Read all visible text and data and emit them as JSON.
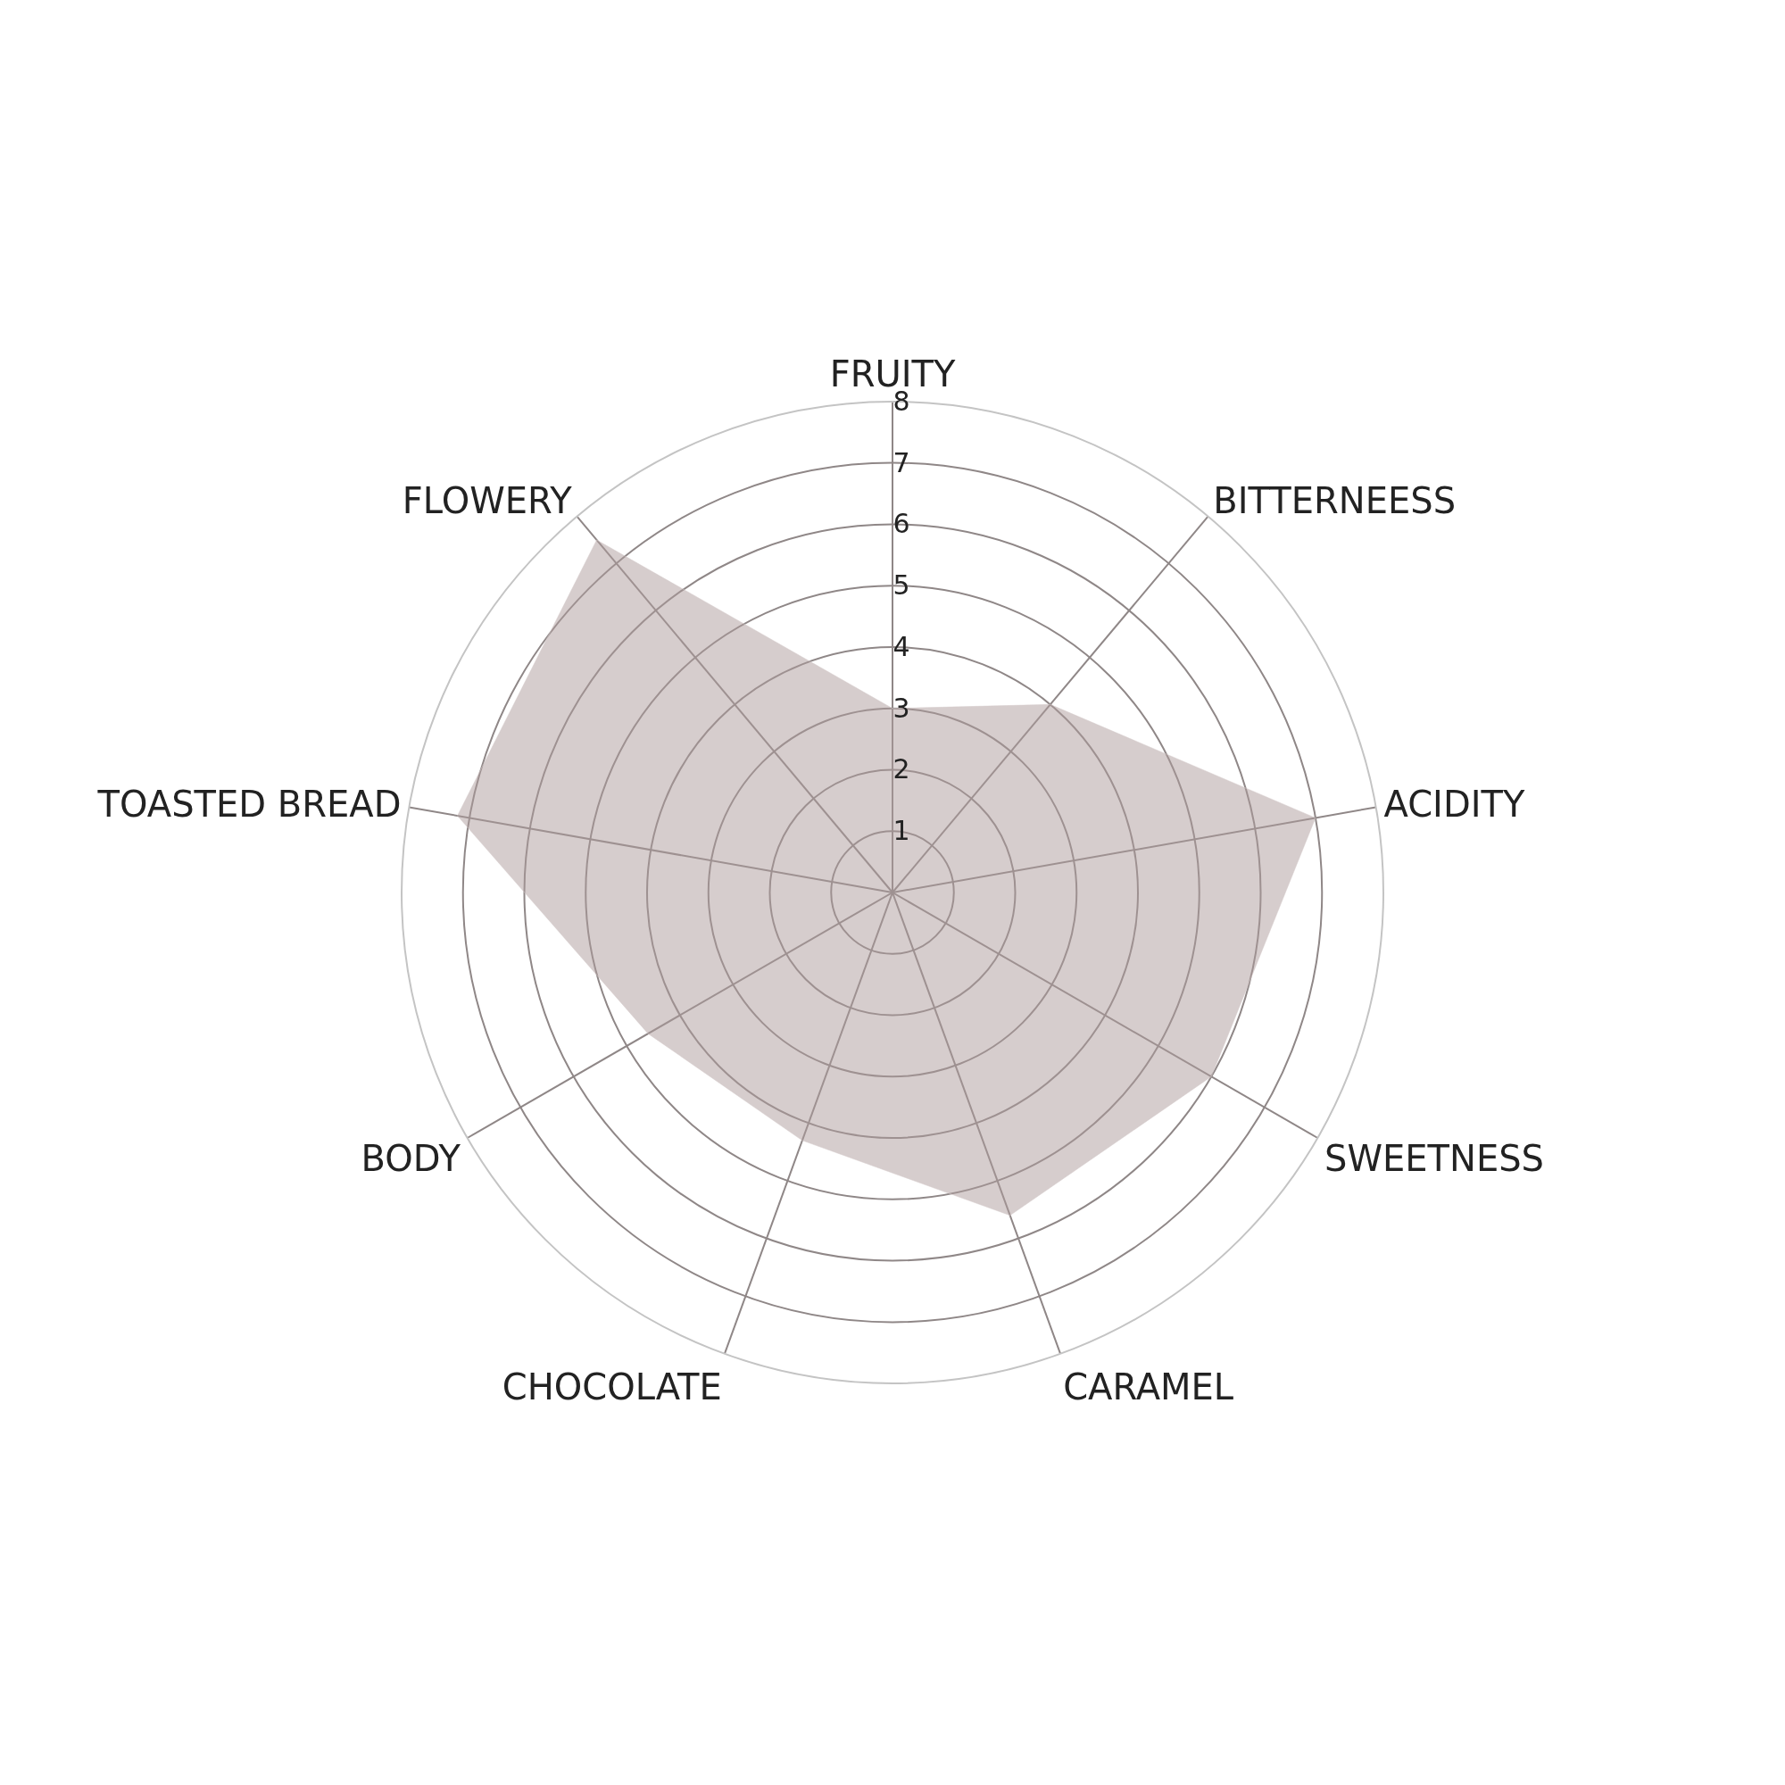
{
  "chart_data": {
    "type": "radar",
    "categories": [
      "FRUITY",
      "BITTERNEESS",
      "ACIDITY",
      "SWEETNESS",
      "CARAMEL",
      "CHOCOLATE",
      "BODY",
      "TOASTED BREAD",
      "FLOWERY"
    ],
    "series": [
      {
        "color": "#d6cdcd",
        "values": [
          3,
          4,
          7,
          6,
          5.6,
          4.3,
          4.6,
          7.2,
          7.5
        ]
      }
    ],
    "ylim": [
      0,
      8
    ],
    "yticks": [
      1,
      2,
      3,
      4,
      5,
      6,
      7,
      8
    ],
    "grid": true
  }
}
